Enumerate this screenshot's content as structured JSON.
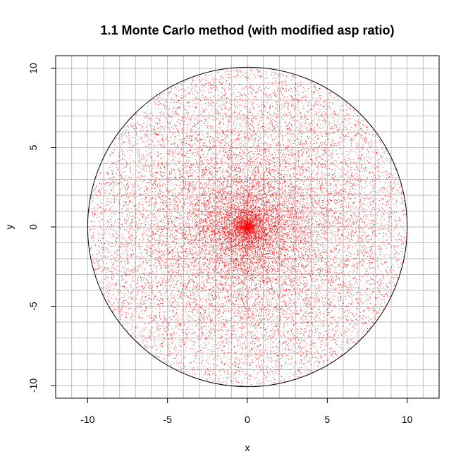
{
  "chart_data": {
    "type": "scatter",
    "title": "1.1 Monte Carlo method (with modified asp ratio)",
    "xlabel": "x",
    "ylabel": "y",
    "xlim": [
      -12,
      12
    ],
    "ylim": [
      -10.8,
      10.8
    ],
    "x_ticks": [
      -10,
      -5,
      0,
      5,
      10
    ],
    "y_ticks": [
      -10,
      -5,
      0,
      5,
      10
    ],
    "grid": true,
    "grid_step": 1,
    "grid_color": "#bebebe",
    "point_color": "#ff0000",
    "circle": {
      "center": [
        0,
        0
      ],
      "radius": 10,
      "color": "#000000"
    },
    "series": [
      {
        "distribution": "uniform radius, uniform angle",
        "n_points": 20000,
        "radius_max": 10
      }
    ]
  }
}
